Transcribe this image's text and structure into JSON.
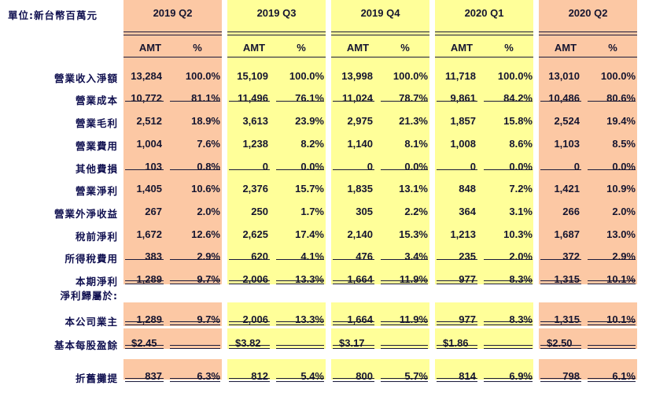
{
  "unit_label": "單位:新台幣百萬元",
  "col_headers": {
    "amt": "AMT",
    "pct": "%"
  },
  "colors": {
    "q2_fill": "#fcc8a4",
    "q34_fill": "#ffff99",
    "text": "#151530",
    "label_text": "#101050"
  },
  "quarters": [
    "2019 Q2",
    "2019 Q3",
    "2019 Q4",
    "2020 Q1",
    "2020 Q2"
  ],
  "attribution_header": "淨利歸屬於:",
  "rows": [
    {
      "label": "營業收入淨額",
      "vals": [
        "13,284",
        "100.0%",
        "15,109",
        "100.0%",
        "13,998",
        "100.0%",
        "11,718",
        "100.0%",
        "13,010",
        "100.0%"
      ]
    },
    {
      "label": "營業成本",
      "vals": [
        "10,772",
        "81.1%",
        "11,496",
        "76.1%",
        "11,024",
        "78.7%",
        "9,861",
        "84.2%",
        "10,486",
        "80.6%"
      ]
    },
    {
      "label": "營業毛利",
      "vals": [
        "2,512",
        "18.9%",
        "3,613",
        "23.9%",
        "2,975",
        "21.3%",
        "1,857",
        "15.8%",
        "2,524",
        "19.4%"
      ]
    },
    {
      "label": "營業費用",
      "vals": [
        "1,004",
        "7.6%",
        "1,238",
        "8.2%",
        "1,140",
        "8.1%",
        "1,008",
        "8.6%",
        "1,103",
        "8.5%"
      ]
    },
    {
      "label": "其他費損",
      "vals": [
        "103",
        "0.8%",
        "0",
        "0.0%",
        "0",
        "0.0%",
        "0",
        "0.0%",
        "0",
        "0.0%"
      ]
    },
    {
      "label": "營業淨利",
      "vals": [
        "1,405",
        "10.6%",
        "2,376",
        "15.7%",
        "1,835",
        "13.1%",
        "848",
        "7.2%",
        "1,421",
        "10.9%"
      ]
    },
    {
      "label": "營業外淨收益",
      "vals": [
        "267",
        "2.0%",
        "250",
        "1.7%",
        "305",
        "2.2%",
        "364",
        "3.1%",
        "266",
        "2.0%"
      ]
    },
    {
      "label": "稅前淨利",
      "vals": [
        "1,672",
        "12.6%",
        "2,625",
        "17.4%",
        "2,140",
        "15.3%",
        "1,213",
        "10.3%",
        "1,687",
        "13.0%"
      ]
    },
    {
      "label": "所得稅費用",
      "vals": [
        "383",
        "2.9%",
        "620",
        "4.1%",
        "476",
        "3.4%",
        "235",
        "2.0%",
        "372",
        "2.9%"
      ]
    },
    {
      "label": "本期淨利",
      "vals": [
        "1,289",
        "9.7%",
        "2,006",
        "13.3%",
        "1,664",
        "11.9%",
        "977",
        "8.3%",
        "1,315",
        "10.1%"
      ]
    },
    {
      "label": "本公司業主",
      "vals": [
        "1,289",
        "9.7%",
        "2,006",
        "13.3%",
        "1,664",
        "11.9%",
        "977",
        "8.3%",
        "1,315",
        "10.1%"
      ]
    },
    {
      "label": "基本每股盈餘",
      "vals": [
        "$2.45",
        "",
        "$3.82",
        "",
        "$3.17",
        "",
        "$1.86",
        "",
        "$2.50",
        ""
      ]
    },
    {
      "label": "折舊攤提",
      "vals": [
        "837",
        "6.3%",
        "812",
        "5.4%",
        "800",
        "5.7%",
        "814",
        "6.9%",
        "798",
        "6.1%"
      ]
    }
  ]
}
